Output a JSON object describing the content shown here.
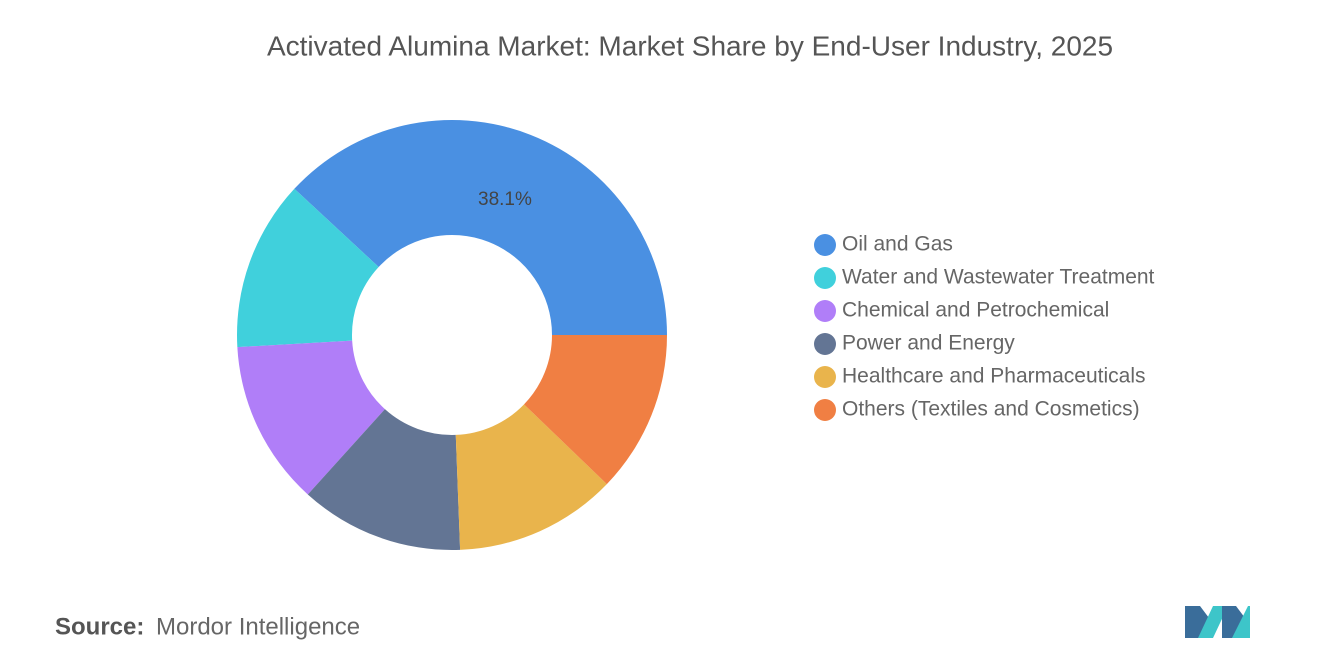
{
  "chart_data": {
    "type": "donut",
    "title": "Activated Alumina Market: Market Share by End-User Industry, 2025",
    "categories": [
      "Oil and Gas",
      "Water and Wastewater Treatment",
      "Chemical and Petrochemical",
      "Power and Energy",
      "Healthcare and Pharmaceuticals",
      "Others (Textiles and Cosmetics)"
    ],
    "values": [
      38.1,
      12.8,
      12.4,
      12.3,
      12.2,
      12.2
    ],
    "value_labels": [
      "38.1%",
      null,
      null,
      null,
      null,
      null
    ],
    "colors": [
      "#4a90e2",
      "#40d0dc",
      "#b07ef8",
      "#637594",
      "#e9b44c",
      "#f07f43"
    ],
    "legend": "right"
  },
  "source_label": "Source:",
  "source": "Mordor Intelligence"
}
